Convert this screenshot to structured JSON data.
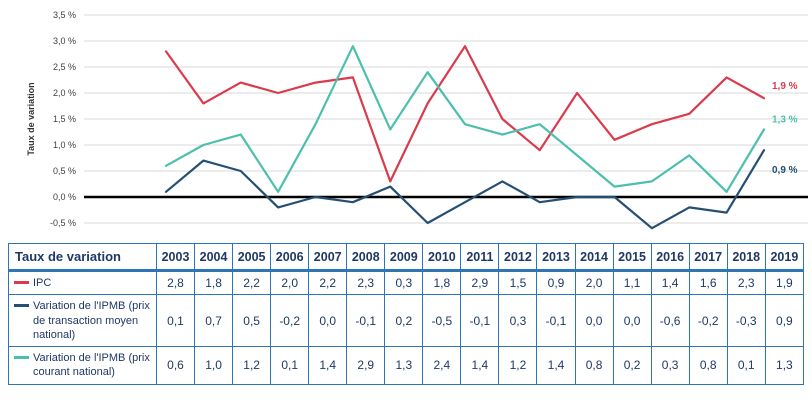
{
  "chart": {
    "y_axis_label": "Taux de variation",
    "y_ticks": [
      "3,5 %",
      "3,0 %",
      "2,5 %",
      "2,0 %",
      "1,5 %",
      "1,0 %",
      "0,5 %",
      "0,0 %",
      "-0,5 %"
    ],
    "y_tick_values": [
      3.5,
      3.0,
      2.5,
      2.0,
      1.5,
      1.0,
      0.5,
      0.0,
      -0.5
    ],
    "end_labels": [
      {
        "text": "1,9 %",
        "series": "IPC"
      },
      {
        "text": "0,9 %",
        "series": "Variation de l'IPMB (prix de transaction moyen national)"
      },
      {
        "text": "1,3 %",
        "series": "Variation de l'IPMB (prix courant national)"
      }
    ]
  },
  "chart_data": {
    "type": "line",
    "x": [
      2003,
      2004,
      2005,
      2006,
      2007,
      2008,
      2009,
      2010,
      2011,
      2012,
      2013,
      2014,
      2015,
      2016,
      2017,
      2018,
      2019
    ],
    "series": [
      {
        "name": "IPC",
        "color": "#d93b4c",
        "values": [
          2.8,
          1.8,
          2.2,
          2.0,
          2.2,
          2.3,
          0.3,
          1.8,
          2.9,
          1.5,
          0.9,
          2.0,
          1.1,
          1.4,
          1.6,
          2.3,
          1.9
        ]
      },
      {
        "name": "Variation de l'IPMB (prix de transaction moyen national)",
        "color": "#254f73",
        "values": [
          0.1,
          0.7,
          0.5,
          -0.2,
          0.0,
          -0.1,
          0.2,
          -0.5,
          -0.1,
          0.3,
          -0.1,
          0.0,
          0.0,
          -0.6,
          -0.2,
          -0.3,
          0.9
        ]
      },
      {
        "name": "Variation de l'IPMB (prix courant national)",
        "color": "#4cbfae",
        "values": [
          0.6,
          1.0,
          1.2,
          0.1,
          1.4,
          2.9,
          1.3,
          2.4,
          1.4,
          1.2,
          1.4,
          0.8,
          0.2,
          0.3,
          0.8,
          0.1,
          1.3
        ]
      }
    ],
    "title": "",
    "xlabel": "",
    "ylabel": "Taux de variation",
    "ylim": [
      -0.5,
      3.5
    ],
    "grid": true,
    "legend_position": "table-first-column"
  },
  "table": {
    "header": [
      "Taux de variation",
      "2003",
      "2004",
      "2005",
      "2006",
      "2007",
      "2008",
      "2009",
      "2010",
      "2011",
      "2012",
      "2013",
      "2014",
      "2015",
      "2016",
      "2017",
      "2018",
      "2019"
    ],
    "rows": [
      {
        "label": "IPC",
        "color": "#d93b4c",
        "values": [
          "2,8",
          "1,8",
          "2,2",
          "2,0",
          "2,2",
          "2,3",
          "0,3",
          "1,8",
          "2,9",
          "1,5",
          "0,9",
          "2,0",
          "1,1",
          "1,4",
          "1,6",
          "2,3",
          "1,9"
        ]
      },
      {
        "label": "Variation de l'IPMB (prix de transaction moyen national)",
        "color": "#254f73",
        "values": [
          "0,1",
          "0,7",
          "0,5",
          "-0,2",
          "0,0",
          "-0,1",
          "0,2",
          "-0,5",
          "-0,1",
          "0,3",
          "-0,1",
          "0,0",
          "0,0",
          "-0,6",
          "-0,2",
          "-0,3",
          "0,9"
        ]
      },
      {
        "label": "Variation de l'IPMB (prix courant national)",
        "color": "#4cbfae",
        "values": [
          "0,6",
          "1,0",
          "1,2",
          "0,1",
          "1,4",
          "2,9",
          "1,3",
          "2,4",
          "1,4",
          "1,2",
          "1,4",
          "0,8",
          "0,2",
          "0,3",
          "0,8",
          "0,1",
          "1,3"
        ]
      }
    ]
  },
  "colors": {
    "ipc": "#d93b4c",
    "ipmb_transaction": "#254f73",
    "ipmb_courant": "#4cbfae",
    "table_border": "#2e75b6",
    "table_text": "#1f3864",
    "grid_line": "#d9d9d9",
    "zero_line": "#000000",
    "tick_text": "#404040"
  }
}
